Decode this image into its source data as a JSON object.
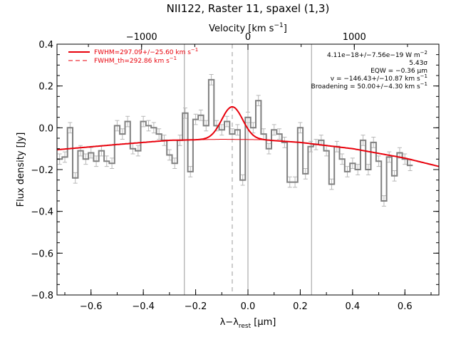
{
  "chart_data": {
    "type": "line",
    "title": "NII122, Raster 11, spaxel (1,3)",
    "xlabel": "λ−λ",
    "xlabel_sub": "rest",
    "xlabel_unit": " [μm]",
    "ylabel": "Flux density [Jy]",
    "top_axis_label": "Velocity [km s",
    "top_axis_label_sup": "−1",
    "top_axis_label_end": "]",
    "xlim": [
      -0.73,
      0.73
    ],
    "ylim": [
      -0.8,
      0.4
    ],
    "xticks": [
      -0.6,
      -0.4,
      -0.2,
      0.0,
      0.2,
      0.4,
      0.6
    ],
    "xtick_labels": [
      "−0.6",
      "−0.4",
      "−0.2",
      "0.0",
      "0.2",
      "0.4",
      "0.6"
    ],
    "yticks": [
      0.4,
      0.2,
      0.0,
      -0.2,
      -0.4,
      -0.6,
      -0.8
    ],
    "ytick_labels": [
      "0.4",
      "0.2",
      "0.0",
      "−0.2",
      "−0.4",
      "−0.6",
      "−0.8"
    ],
    "top_ticks_velocity": [
      -1000,
      0,
      1000
    ],
    "top_tick_labels": [
      "−1000",
      "0",
      "1000"
    ],
    "line_rest_um": 121.9,
    "vertical_lines": [
      -0.243,
      0.0,
      0.243
    ],
    "dashed_line_x": -0.06,
    "step_x_start": -0.73,
    "step_width": 0.02,
    "spectrum": [
      -0.15,
      -0.14,
      0.0,
      -0.24,
      -0.11,
      -0.15,
      -0.12,
      -0.16,
      -0.11,
      -0.16,
      -0.17,
      0.01,
      -0.03,
      0.03,
      -0.1,
      -0.11,
      0.03,
      0.01,
      0.0,
      -0.03,
      -0.06,
      -0.13,
      -0.17,
      -0.06,
      0.07,
      -0.21,
      0.04,
      0.06,
      0.01,
      0.23,
      0.01,
      -0.01,
      0.03,
      -0.03,
      -0.01,
      -0.25,
      0.05,
      0.0,
      0.13,
      -0.03,
      -0.1,
      -0.01,
      -0.03,
      -0.07,
      -0.26,
      -0.26,
      0.0,
      -0.22,
      -0.09,
      -0.08,
      -0.06,
      -0.11,
      -0.27,
      -0.09,
      -0.15,
      -0.21,
      -0.17,
      -0.2,
      -0.06,
      -0.2,
      -0.07,
      -0.16,
      -0.35,
      -0.14,
      -0.23,
      -0.12,
      -0.15,
      -0.18
    ],
    "errors": 0.025,
    "fit": {
      "baseline_points": [
        [
          -0.73,
          -0.105
        ],
        [
          -0.5,
          -0.08
        ],
        [
          -0.3,
          -0.06
        ],
        [
          -0.1,
          -0.055
        ],
        [
          0.05,
          -0.057
        ],
        [
          0.2,
          -0.07
        ],
        [
          0.4,
          -0.1
        ],
        [
          0.6,
          -0.145
        ],
        [
          0.73,
          -0.185
        ]
      ],
      "gauss_center": -0.06,
      "gauss_amplitude": 0.156,
      "gauss_sigma": 0.04
    },
    "legend": [
      {
        "label": "FWHM=297.09+/−25.60 km s",
        "sup": "−1",
        "style": "solid"
      },
      {
        "label": "FWHM_th=292.86 km s",
        "sup": "−1",
        "style": "dashed"
      }
    ],
    "annotations": [
      {
        "text": "4.11e−18+/−7.56e−19 W m",
        "sup": "−2"
      },
      {
        "text": "5.43σ",
        "sup": ""
      },
      {
        "text": "EQW = −0.36 μm",
        "sup": ""
      },
      {
        "text": "v = −146.43+/−10.87 km s",
        "sup": "−1"
      },
      {
        "text": "Broadening = 50.00+/−4.30 km s",
        "sup": "−1"
      }
    ],
    "colors": {
      "spectrum": "#808080",
      "fit": "#e8000b",
      "frame": "#000000",
      "vline": "#9a9a9a"
    }
  }
}
